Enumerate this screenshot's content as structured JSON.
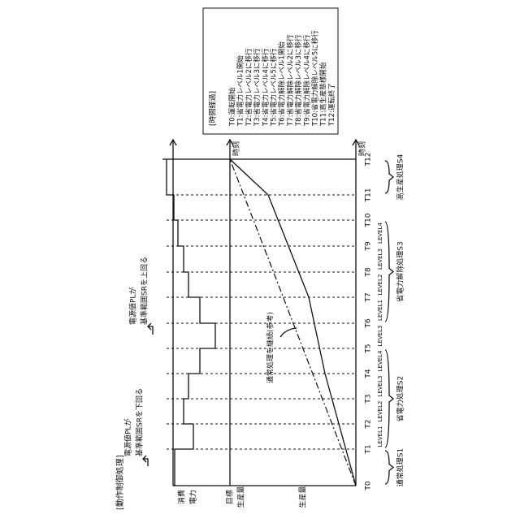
{
  "header": {
    "title": "[動作制御処理]"
  },
  "axes": {
    "power": [
      "消費",
      "電力"
    ],
    "target": [
      "目標",
      "生産量"
    ],
    "production": "生産量",
    "time_top": "時刻",
    "time_bottom": "時刻"
  },
  "times": [
    "T0",
    "T1",
    "T2",
    "T3",
    "T4",
    "T5",
    "T6",
    "T7",
    "T8",
    "T9",
    "T10",
    "T11",
    "T12"
  ],
  "levels": [
    "LEVEL1",
    "LEVEL2",
    "LEVEL3",
    "LEVEL4",
    "LEVEL3",
    "LEVEL1",
    "LEVEL2",
    "LEVEL3",
    "LEVEL4"
  ],
  "phases": [
    "通常処理S1",
    "省電力処理S2",
    "省電力解除処理S3",
    "高生産処理S4"
  ],
  "annotations": {
    "below": [
      "電源値PLが",
      "基準範囲SRを下回る"
    ],
    "above": [
      "電源値PLが",
      "基準範囲SRを上回る"
    ],
    "reference": "通常処理を継続(参考)"
  },
  "legend": {
    "title": "[時間経過]",
    "items": [
      "T0:運転開始",
      "T1:省電力レベル1開始",
      "T2:省電力レベル2に移行",
      "T3:省電力レベル3に移行",
      "T4:省電力レベル4に移行",
      "T5:省電力レベル5に移行",
      "T6:省電力解除レベル1開始",
      "T7:省電力解除レベル2に移行",
      "T8:省電力解除レベル3に移行",
      "T9:省電力解除レベル4に移行",
      "T10:省電力解除レベル5に移行",
      "T11:高生産態様開始",
      "T12:運転終了"
    ]
  }
}
